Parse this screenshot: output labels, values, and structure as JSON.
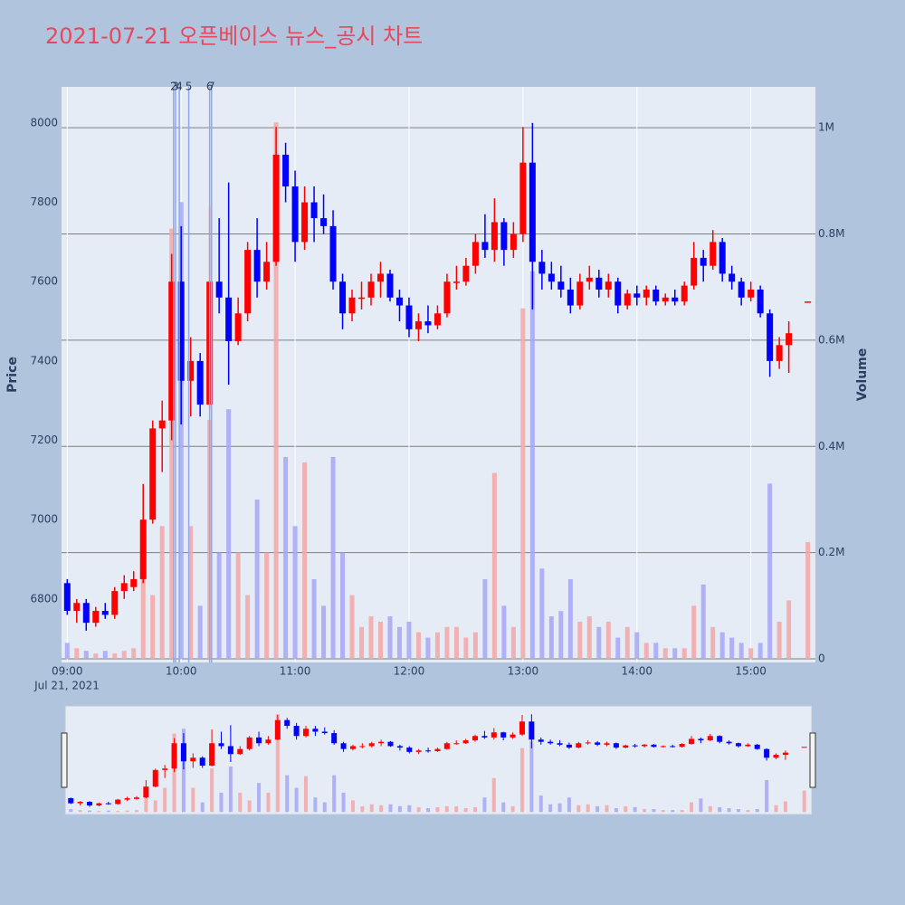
{
  "chart_data": {
    "type": "candlestick",
    "title": "2021-07-21 오픈베이스 뉴스_공시 차트",
    "y_label": "Price",
    "y2_label": "Volume",
    "x_date_label": "Jul 21, 2021",
    "increasing_color": "#ff0000",
    "decreasing_color": "#0000ff",
    "volume_increasing_color": "#f4a6a6",
    "volume_decreasing_color": "#a6a6f4",
    "xlim": [
      "08:57",
      "15:34"
    ],
    "xticks": [
      "09:00",
      "10:00",
      "11:00",
      "12:00",
      "13:00",
      "14:00",
      "15:00"
    ],
    "ylim": [
      6640,
      8091
    ],
    "yticks": [
      6800,
      7000,
      7200,
      7400,
      7600,
      7800,
      8000
    ],
    "y2lim": [
      -6800,
      1077000
    ],
    "y2ticks": [
      0,
      {
        "value": 200000,
        "label": "0.2M"
      },
      {
        "value": 400000,
        "label": "0.4M"
      },
      {
        "value": 600000,
        "label": "0.6M"
      },
      {
        "value": 800000,
        "label": "0.8M"
      },
      {
        "value": 1000000,
        "label": "1M"
      }
    ],
    "grid": true,
    "annotations": [
      {
        "x": "09:56",
        "text": "2"
      },
      {
        "x": "09:57",
        "text": "3"
      },
      {
        "x": "09:59",
        "text": "4"
      },
      {
        "x": "10:04",
        "text": "5"
      },
      {
        "x": "10:15",
        "text": "6"
      },
      {
        "x": "10:16",
        "text": "7"
      }
    ],
    "x": [
      "09:00",
      "09:05",
      "09:10",
      "09:15",
      "09:20",
      "09:25",
      "09:30",
      "09:35",
      "09:40",
      "09:45",
      "09:50",
      "09:55",
      "10:00",
      "10:05",
      "10:10",
      "10:15",
      "10:20",
      "10:25",
      "10:30",
      "10:35",
      "10:40",
      "10:45",
      "10:50",
      "10:55",
      "11:00",
      "11:05",
      "11:10",
      "11:15",
      "11:20",
      "11:25",
      "11:30",
      "11:35",
      "11:40",
      "11:45",
      "11:50",
      "11:55",
      "12:00",
      "12:05",
      "12:10",
      "12:15",
      "12:20",
      "12:25",
      "12:30",
      "12:35",
      "12:40",
      "12:45",
      "12:50",
      "12:55",
      "13:00",
      "13:05",
      "13:10",
      "13:15",
      "13:20",
      "13:25",
      "13:30",
      "13:35",
      "13:40",
      "13:45",
      "13:50",
      "13:55",
      "14:00",
      "14:05",
      "14:10",
      "14:15",
      "14:20",
      "14:25",
      "14:30",
      "14:35",
      "14:40",
      "14:45",
      "14:50",
      "14:55",
      "15:00",
      "15:05",
      "15:10",
      "15:15",
      "15:20",
      "15:30"
    ],
    "open": [
      6840,
      6770,
      6790,
      6740,
      6770,
      6760,
      6820,
      6830,
      6850,
      7000,
      7230,
      7250,
      7600,
      7350,
      7400,
      7290,
      7600,
      7560,
      7450,
      7520,
      7680,
      7600,
      7650,
      7920,
      7840,
      7700,
      7800,
      7760,
      7740,
      7600,
      7520,
      7560,
      7560,
      7600,
      7620,
      7560,
      7540,
      7480,
      7500,
      7490,
      7520,
      7600,
      7600,
      7640,
      7700,
      7680,
      7750,
      7680,
      7720,
      7900,
      7650,
      7620,
      7600,
      7580,
      7540,
      7600,
      7610,
      7580,
      7600,
      7540,
      7570,
      7560,
      7580,
      7550,
      7560,
      7550,
      7590,
      7660,
      7640,
      7700,
      7620,
      7600,
      7560,
      7580,
      7520,
      7400,
      7440,
      7550
    ],
    "high": [
      6850,
      6800,
      6800,
      6780,
      6790,
      6830,
      6860,
      6870,
      7090,
      7250,
      7300,
      7670,
      7740,
      7460,
      7420,
      7790,
      7760,
      7850,
      7560,
      7700,
      7760,
      7700,
      7990,
      7950,
      7880,
      7840,
      7840,
      7820,
      7780,
      7620,
      7580,
      7600,
      7620,
      7650,
      7630,
      7580,
      7560,
      7520,
      7540,
      7540,
      7620,
      7640,
      7660,
      7720,
      7770,
      7810,
      7760,
      7750,
      7990,
      8000,
      7680,
      7650,
      7640,
      7610,
      7620,
      7640,
      7630,
      7620,
      7610,
      7580,
      7590,
      7590,
      7590,
      7570,
      7580,
      7600,
      7700,
      7680,
      7730,
      7710,
      7640,
      7610,
      7600,
      7590,
      7530,
      7460,
      7500,
      7550
    ],
    "low": [
      6760,
      6740,
      6720,
      6730,
      6750,
      6750,
      6800,
      6820,
      6840,
      6990,
      7120,
      7200,
      7240,
      7260,
      7260,
      7280,
      7520,
      7340,
      7440,
      7500,
      7560,
      7580,
      7640,
      7800,
      7650,
      7680,
      7700,
      7720,
      7580,
      7480,
      7500,
      7530,
      7540,
      7560,
      7550,
      7500,
      7460,
      7450,
      7470,
      7480,
      7510,
      7580,
      7590,
      7620,
      7660,
      7650,
      7640,
      7660,
      7700,
      7530,
      7580,
      7580,
      7560,
      7520,
      7530,
      7580,
      7560,
      7560,
      7520,
      7530,
      7540,
      7540,
      7540,
      7540,
      7540,
      7540,
      7580,
      7600,
      7630,
      7600,
      7580,
      7540,
      7550,
      7510,
      7360,
      7380,
      7370,
      7550
    ],
    "close": [
      6770,
      6790,
      6740,
      6770,
      6760,
      6820,
      6840,
      6850,
      7000,
      7230,
      7250,
      7600,
      7350,
      7400,
      7290,
      7600,
      7560,
      7450,
      7520,
      7680,
      7600,
      7650,
      7920,
      7840,
      7700,
      7800,
      7760,
      7740,
      7600,
      7520,
      7560,
      7560,
      7600,
      7620,
      7560,
      7540,
      7480,
      7500,
      7490,
      7520,
      7600,
      7600,
      7640,
      7700,
      7680,
      7750,
      7680,
      7720,
      7900,
      7650,
      7620,
      7600,
      7580,
      7540,
      7600,
      7610,
      7580,
      7600,
      7540,
      7570,
      7560,
      7580,
      7550,
      7560,
      7550,
      7590,
      7660,
      7640,
      7700,
      7620,
      7600,
      7560,
      7580,
      7520,
      7400,
      7440,
      7470,
      7550
    ],
    "volume": [
      30000,
      20000,
      15000,
      10000,
      15000,
      10000,
      15000,
      20000,
      150000,
      120000,
      250000,
      810000,
      860000,
      250000,
      100000,
      450000,
      200000,
      470000,
      200000,
      120000,
      300000,
      200000,
      1010000,
      380000,
      250000,
      370000,
      150000,
      100000,
      380000,
      200000,
      120000,
      60000,
      80000,
      70000,
      80000,
      60000,
      70000,
      50000,
      40000,
      50000,
      60000,
      60000,
      40000,
      50000,
      150000,
      350000,
      100000,
      60000,
      660000,
      730000,
      170000,
      80000,
      90000,
      150000,
      70000,
      80000,
      60000,
      70000,
      40000,
      60000,
      50000,
      30000,
      30000,
      20000,
      20000,
      20000,
      100000,
      140000,
      60000,
      50000,
      40000,
      30000,
      20000,
      30000,
      330000,
      70000,
      110000,
      220000
    ]
  }
}
